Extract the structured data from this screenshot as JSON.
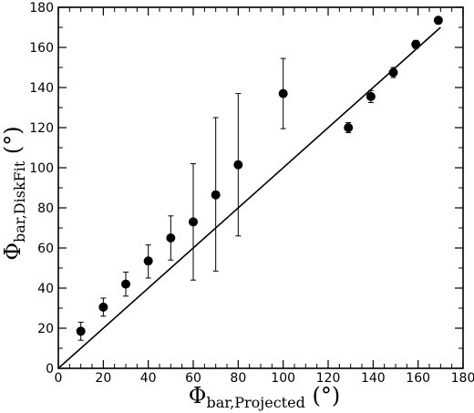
{
  "chart_data": {
    "type": "scatter",
    "xlabel": {
      "symbol": "Φ",
      "subscript": "bar,Projected",
      "unit": "(°)"
    },
    "ylabel": {
      "symbol": "Φ",
      "subscript": "bar,DiskFit",
      "unit": "(°)"
    },
    "xlim": [
      0,
      180
    ],
    "ylim": [
      0,
      180
    ],
    "xticks": [
      0,
      20,
      40,
      60,
      80,
      100,
      120,
      140,
      160,
      180
    ],
    "yticks": [
      0,
      20,
      40,
      60,
      80,
      100,
      120,
      140,
      160,
      180
    ],
    "grid": false,
    "points": [
      {
        "x": 10,
        "y": 18.5,
        "err_low": 4.5,
        "err_high": 4.5
      },
      {
        "x": 20,
        "y": 30.5,
        "err_low": 4.5,
        "err_high": 4.5
      },
      {
        "x": 30,
        "y": 42,
        "err_low": 6,
        "err_high": 6
      },
      {
        "x": 40,
        "y": 53.5,
        "err_low": 8.5,
        "err_high": 8
      },
      {
        "x": 50,
        "y": 65,
        "err_low": 11,
        "err_high": 11
      },
      {
        "x": 60,
        "y": 73,
        "err_low": 29,
        "err_high": 29
      },
      {
        "x": 70,
        "y": 86.5,
        "err_low": 38,
        "err_high": 38.5
      },
      {
        "x": 80,
        "y": 101.5,
        "err_low": 35.5,
        "err_high": 35.5
      },
      {
        "x": 100,
        "y": 137,
        "err_low": 17.5,
        "err_high": 17.5
      },
      {
        "x": 129,
        "y": 120,
        "err_low": 2.5,
        "err_high": 2.5
      },
      {
        "x": 139,
        "y": 135.5,
        "err_low": 3,
        "err_high": 3
      },
      {
        "x": 149,
        "y": 147.5,
        "err_low": 2.5,
        "err_high": 2.5
      },
      {
        "x": 159,
        "y": 161.5,
        "err_low": 2,
        "err_high": 2
      },
      {
        "x": 169,
        "y": 173.5,
        "err_low": 1.5,
        "err_high": 1.5
      }
    ],
    "reference_line": {
      "x": [
        0,
        170
      ],
      "y": [
        0,
        170
      ]
    }
  }
}
